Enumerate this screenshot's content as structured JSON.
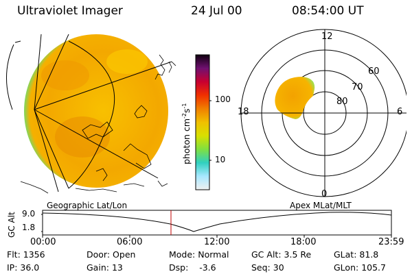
{
  "header": {
    "instrument": "Ultraviolet Imager",
    "date": "24 Jul 00",
    "time": "08:54:00 UT"
  },
  "colorbar": {
    "unit_main": "photon cm",
    "unit_sup1": "-2",
    "unit_mid": "s",
    "unit_sup2": "-1",
    "ticks": [
      "100",
      "10"
    ]
  },
  "polar_plot": {
    "mlt_labels": {
      "top": "12",
      "left": "18",
      "right": "6",
      "bottom": "0"
    },
    "lat_labels": [
      "60",
      "70",
      "80"
    ]
  },
  "orbit_plot": {
    "ylabel": "GC Alt",
    "y_ticks": [
      "9.0",
      "1.8"
    ],
    "left_label": "Geographic Lat/Lon",
    "right_label": "Apex MLat/MLT",
    "x_ticks": [
      "00:00",
      "06:00",
      "12:00",
      "18:00",
      "23:59"
    ]
  },
  "status": {
    "row1": [
      {
        "label": "Flt:",
        "value": "1356"
      },
      {
        "label": "Door:",
        "value": "Open"
      },
      {
        "label": "Mode:",
        "value": "Normal"
      },
      {
        "label": "GC Alt:",
        "value": "3.5 Re"
      },
      {
        "label": "GLat:",
        "value": "81.8"
      }
    ],
    "row2": [
      {
        "label": "IP:",
        "value": "36.0"
      },
      {
        "label": "Gain:",
        "value": "13"
      },
      {
        "label": "Dsp:",
        "value": "-3.6"
      },
      {
        "label": "Seq:",
        "value": "30"
      },
      {
        "label": "GLon:",
        "value": "105.7"
      }
    ]
  },
  "colors": {
    "disk": "#f6b400",
    "disk_edge": "#8ee060",
    "marker": "#c00000"
  }
}
